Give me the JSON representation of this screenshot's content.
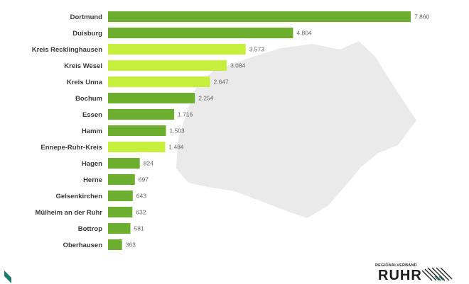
{
  "chart_data": {
    "type": "bar",
    "orientation": "horizontal",
    "title": "",
    "xlabel": "",
    "ylabel": "",
    "grid": false,
    "legend": "none",
    "categories": [
      "Dortmund",
      "Duisburg",
      "Kreis Recklinghausen",
      "Kreis Wesel",
      "Kreis Unna",
      "Bochum",
      "Essen",
      "Hamm",
      "Ennepe-Ruhr-Kreis",
      "Hagen",
      "Herne",
      "Gelsenkirchen",
      "Mülheim an der Ruhr",
      "Bottrop",
      "Oberhausen"
    ],
    "values": [
      7860,
      4804,
      3573,
      3084,
      2647,
      2254,
      1716,
      1503,
      1484,
      824,
      697,
      643,
      632,
      581,
      363
    ],
    "value_labels": [
      "7.860",
      "4.804",
      "3.573",
      "3.084",
      "2.647",
      "2.254",
      "1.716",
      "1.503",
      "1.484",
      "824",
      "697",
      "643",
      "632",
      "581",
      "363"
    ],
    "bar_types": [
      "city",
      "city",
      "district",
      "district",
      "district",
      "city",
      "city",
      "city",
      "district",
      "city",
      "city",
      "city",
      "city",
      "city",
      "city"
    ],
    "xlim": [
      0,
      8000
    ]
  },
  "colors": {
    "city": "#6cae2e",
    "district": "#c6ee3c",
    "map": "#eaeaea",
    "accent": "#1f7a6a"
  },
  "logo": {
    "small_text": "REGIONALVERBAND",
    "big_text": "RUHR"
  }
}
